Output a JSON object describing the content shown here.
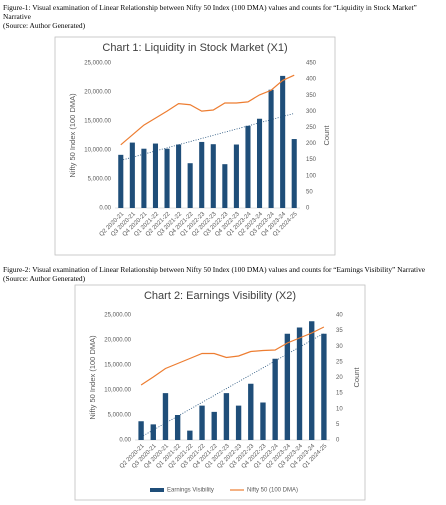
{
  "captions": [
    {
      "text": "Figure-1: Visual examination of Linear Relationship between Nifty 50 Index (100 DMA) values and counts for “Liquidity in Stock Market” Narrative",
      "source": "(Source: Author Generated)"
    },
    {
      "text": "Figure-2: Visual examination of Linear Relationship between Nifty 50 Index (100 DMA) values and counts for “Earnings Visibility” Narrative",
      "source": "(Source: Author Generated)"
    }
  ],
  "chart_data": [
    {
      "type": "combo",
      "title": "Chart 1: Liquidity  in Stock Market  (X1)",
      "ylabel": "Nifty 50 Index (100 DMA)",
      "y2label": "Count",
      "categories": [
        "Q2 2020-21",
        "Q3 2020-21",
        "Q4 2020-21",
        "Q1 2021-22",
        "Q2 2021-22",
        "Q3 2021-22",
        "Q4 2021-22",
        "Q1 2022-23",
        "Q2 2022-23",
        "Q3 2022-23",
        "Q4 2022-23",
        "Q1 2023-24",
        "Q2 2023-24",
        "Q3 2023-24",
        "Q4 2023-24",
        "Q1 2024-25"
      ],
      "series": [
        {
          "type": "bar",
          "axis": "y2",
          "color": "#1f4e79",
          "values": [
            165,
            203,
            184,
            200,
            184,
            197,
            139,
            205,
            198,
            136,
            197,
            255,
            277,
            367,
            410,
            214
          ]
        },
        {
          "type": "line",
          "axis": "y",
          "color": "#ed7d31",
          "values": [
            10900,
            12600,
            14300,
            15500,
            16700,
            18000,
            17800,
            16700,
            16900,
            18100,
            18100,
            18300,
            19500,
            20300,
            22000,
            22900
          ]
        }
      ],
      "ylim": [
        0,
        25000
      ],
      "yticks": [
        {
          "value": 0,
          "label": "0.00"
        },
        {
          "value": 5000,
          "label": "5,000.00"
        },
        {
          "value": 10000,
          "label": "10,000.00"
        },
        {
          "value": 15000,
          "label": "15,000.00"
        },
        {
          "value": 20000,
          "label": "20,000.00"
        },
        {
          "value": 25000,
          "label": "25,000.00"
        }
      ],
      "y2lim": [
        0,
        450
      ],
      "y2ticks": [
        0,
        50,
        100,
        150,
        200,
        250,
        300,
        350,
        400,
        450
      ],
      "trendline": true,
      "legend": false
    },
    {
      "type": "combo",
      "title": "Chart 2: Earnings  Visibility  (X2)",
      "ylabel": "Nifty 50 Index (100 DMA)",
      "y2label": "Count",
      "categories": [
        "Q2 2020-21",
        "Q3 2020-21",
        "Q4 2020-21",
        "Q1 2021-22",
        "Q2 2021-22",
        "Q3 2021-22",
        "Q4 2021-22",
        "Q1 2022-23",
        "Q2 2022-23",
        "Q3 2022-23",
        "Q4 2022-23",
        "Q1 2023-24",
        "Q2 2023-24",
        "Q3 2023-24",
        "Q4 2023-24",
        "Q1 2024-25"
      ],
      "series": [
        {
          "type": "bar",
          "axis": "y2",
          "name": "Earnings Visibility",
          "color": "#1f4e79",
          "values": [
            6,
            5,
            15,
            8,
            3,
            11,
            9,
            15,
            11,
            18,
            12,
            26,
            34,
            36,
            38,
            34
          ]
        },
        {
          "type": "line",
          "axis": "y",
          "name": "Nifty 50 (100 DMA)",
          "color": "#ed7d31",
          "values": [
            11000,
            12600,
            14300,
            15300,
            16300,
            17300,
            17300,
            16500,
            16800,
            17700,
            17900,
            18000,
            19400,
            20400,
            21400,
            22600
          ]
        }
      ],
      "ylim": [
        0,
        25000
      ],
      "yticks": [
        {
          "value": 0,
          "label": "0.00"
        },
        {
          "value": 5000,
          "label": "5,000.00"
        },
        {
          "value": 10000,
          "label": "10,000.00"
        },
        {
          "value": 15000,
          "label": "15,000.00"
        },
        {
          "value": 20000,
          "label": "20,000.00"
        },
        {
          "value": 25000,
          "label": "25,000.00"
        }
      ],
      "y2lim": [
        0,
        40
      ],
      "y2ticks": [
        0,
        5,
        10,
        15,
        20,
        25,
        30,
        35,
        40
      ],
      "trendline": true,
      "legend": true,
      "legend_position": "bottom"
    }
  ]
}
